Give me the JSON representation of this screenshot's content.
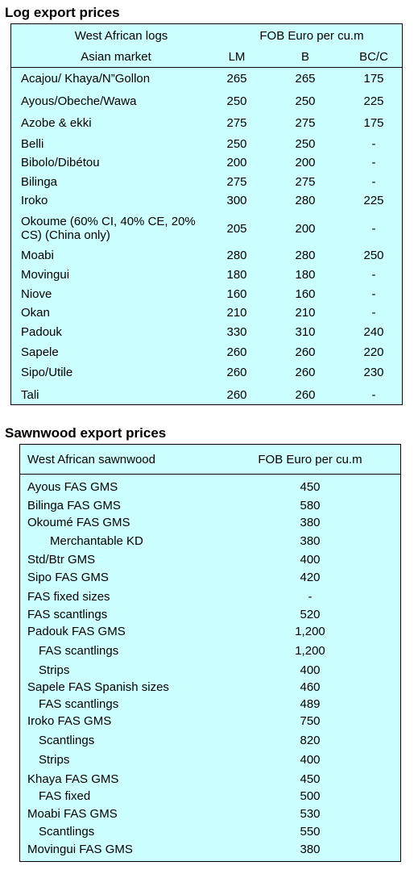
{
  "log_section": {
    "title": "Log export prices",
    "header": {
      "row1_left": "West African logs",
      "row1_right": "FOB Euro per cu.m",
      "row2_left": "Asian market",
      "col_lm": "LM",
      "col_b": "B",
      "col_bcc": "BC/C"
    },
    "rows": [
      {
        "name": "Acajou/ Khaya/N”Gollon",
        "lm": "265",
        "b": "265",
        "bcc": "175"
      },
      {
        "name": "Ayous/Obeche/Wawa",
        "lm": "250",
        "b": "250",
        "bcc": "225"
      },
      {
        "name": "Azobe & ekki",
        "lm": "275",
        "b": "275",
        "bcc": "175"
      },
      {
        "name": "Belli",
        "lm": "250",
        "b": "250",
        "bcc": "-"
      },
      {
        "name": "Bibolo/Dibétou",
        "lm": "200",
        "b": "200",
        "bcc": "-"
      },
      {
        "name": "Bilinga",
        "lm": "275",
        "b": "275",
        "bcc": "-"
      },
      {
        "name": "Iroko",
        "lm": "300",
        "b": "280",
        "bcc": "225"
      },
      {
        "name": "Okoume (60% CI, 40% CE, 20% CS) (China only)",
        "lm": "205",
        "b": "200",
        "bcc": "-"
      },
      {
        "name": "Moabi",
        "lm": "280",
        "b": "280",
        "bcc": "250"
      },
      {
        "name": "Movingui",
        "lm": "180",
        "b": "180",
        "bcc": "-"
      },
      {
        "name": "Niove",
        "lm": "160",
        "b": "160",
        "bcc": "-"
      },
      {
        "name": "Okan",
        "lm": "210",
        "b": "210",
        "bcc": "-"
      },
      {
        "name": "Padouk",
        "lm": "330",
        "b": "310",
        "bcc": "240"
      },
      {
        "name": "Sapele",
        "lm": "260",
        "b": "260",
        "bcc": "220"
      },
      {
        "name": "Sipo/Utile",
        "lm": "260",
        "b": "260",
        "bcc": "230"
      },
      {
        "name": "Tali",
        "lm": "260",
        "b": "260",
        "bcc": "-"
      }
    ]
  },
  "sawn_section": {
    "title": "Sawnwood export prices",
    "header": {
      "left": "West African sawnwood",
      "right": "FOB Euro per cu.m"
    },
    "rows": [
      {
        "name": "Ayous FAS GMS",
        "value": "450",
        "indent": 0
      },
      {
        "name": "Bilinga FAS GMS",
        "value": "580",
        "indent": 0
      },
      {
        "name": "Okoumé FAS GMS",
        "value": "380",
        "indent": 0
      },
      {
        "name": "Merchantable KD",
        "value": "380",
        "indent": 2
      },
      {
        "name": "Std/Btr GMS",
        "value": "400",
        "indent": 0
      },
      {
        "name": "Sipo FAS GMS",
        "value": "420",
        "indent": 0
      },
      {
        "name": "FAS fixed sizes",
        "value": "-",
        "indent": 0
      },
      {
        "name": "FAS scantlings",
        "value": "520",
        "indent": 0
      },
      {
        "name": "Padouk FAS GMS",
        "value": "1,200",
        "indent": 0
      },
      {
        "name": "FAS scantlings",
        "value": "1,200",
        "indent": 1
      },
      {
        "name": "Strips",
        "value": "400",
        "indent": 1
      },
      {
        "name": "Sapele FAS Spanish sizes",
        "value": "460",
        "indent": 0
      },
      {
        "name": "FAS scantlings",
        "value": "489",
        "indent": 1
      },
      {
        "name": "Iroko FAS GMS",
        "value": "750",
        "indent": 0
      },
      {
        "name": "Scantlings",
        "value": "820",
        "indent": 1
      },
      {
        "name": "Strips",
        "value": "400",
        "indent": 1
      },
      {
        "name": "Khaya FAS GMS",
        "value": "450",
        "indent": 0
      },
      {
        "name": "FAS fixed",
        "value": "500",
        "indent": 1
      },
      {
        "name": "Moabi FAS GMS",
        "value": "530",
        "indent": 0
      },
      {
        "name": "Scantlings",
        "value": "550",
        "indent": 1
      },
      {
        "name": "Movingui FAS GMS",
        "value": "380",
        "indent": 0
      }
    ]
  }
}
